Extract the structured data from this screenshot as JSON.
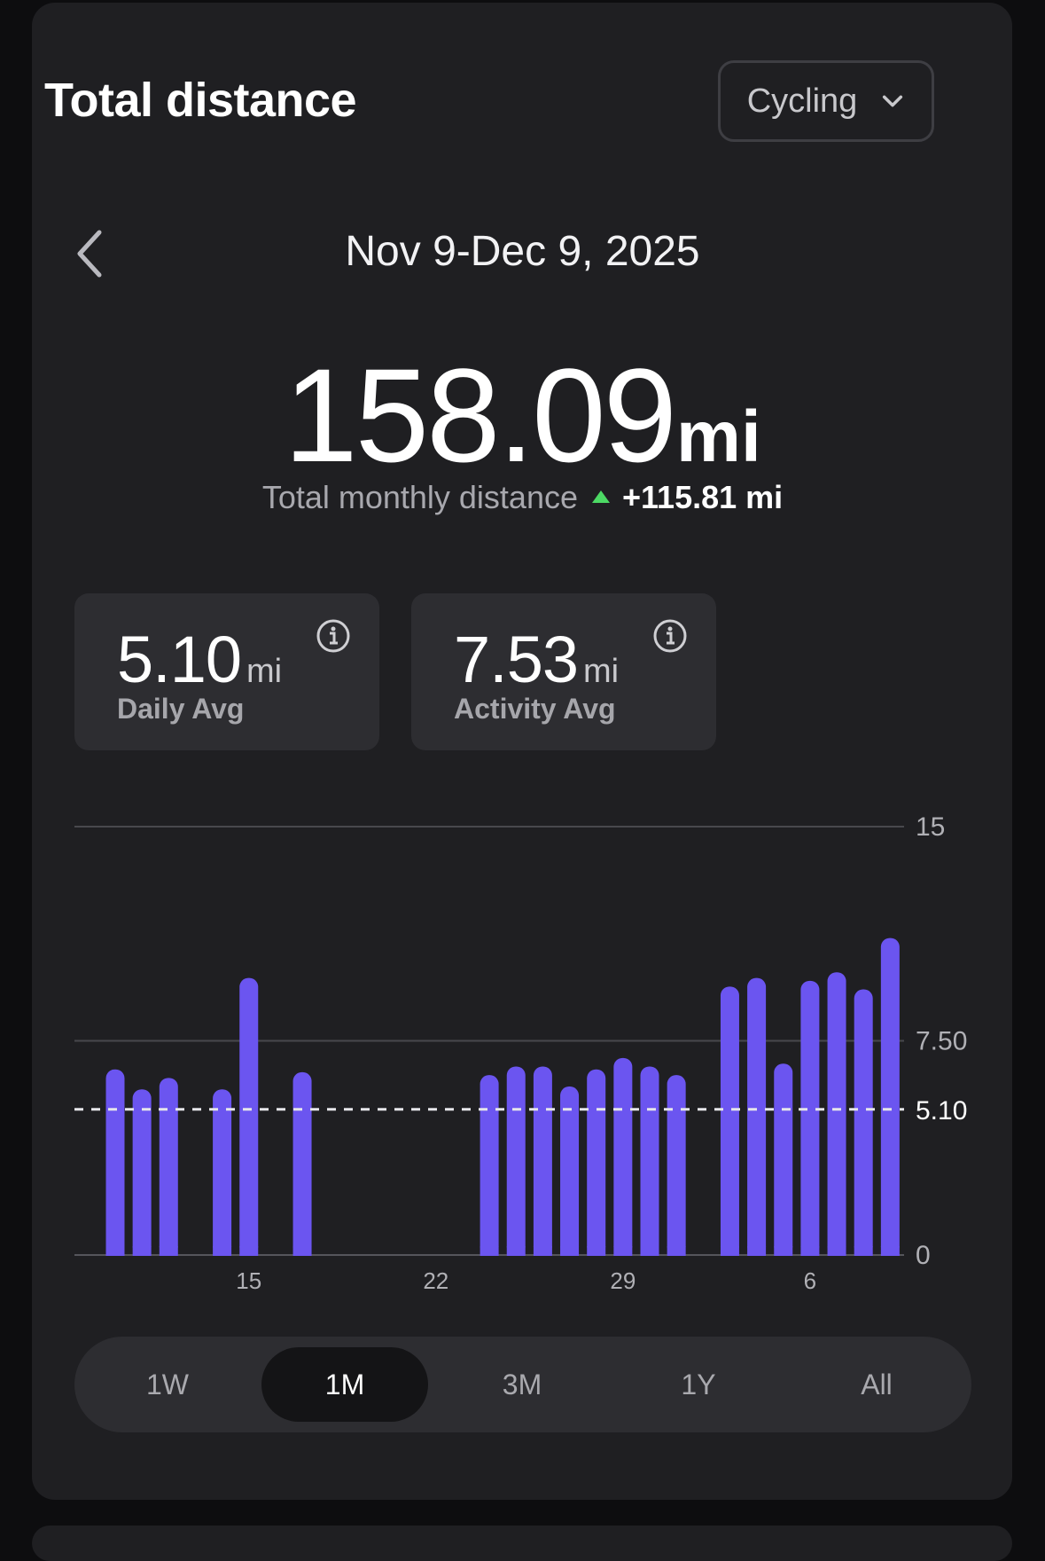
{
  "header": {
    "title": "Total distance",
    "activity_select": "Cycling"
  },
  "period": {
    "range": "Nov 9-Dec 9, 2025"
  },
  "total": {
    "value": "158.09",
    "unit": "mi",
    "label": "Total monthly distance",
    "delta": "+115.81",
    "delta_unit": "mi"
  },
  "stats": [
    {
      "value": "5.10",
      "unit": "mi",
      "label": "Daily Avg"
    },
    {
      "value": "7.53",
      "unit": "mi",
      "label": "Activity Avg"
    }
  ],
  "tabs": [
    {
      "label": "1W",
      "active": false
    },
    {
      "label": "1M",
      "active": true
    },
    {
      "label": "3M",
      "active": false
    },
    {
      "label": "1Y",
      "active": false
    },
    {
      "label": "All",
      "active": false
    }
  ],
  "colors": {
    "bar": "#6b55f0",
    "trend_up": "#4cd964",
    "average_line": "#e6e6ea"
  },
  "icons": {
    "back": "chevron-left-icon",
    "dropdown": "chevron-down-icon",
    "info": "info-icon"
  },
  "chart_data": {
    "type": "bar",
    "x": [
      "Nov 10",
      "Nov 11",
      "Nov 12",
      "Nov 13",
      "Nov 14",
      "Nov 15",
      "Nov 16",
      "Nov 17",
      "Nov 18",
      "Nov 19",
      "Nov 20",
      "Nov 21",
      "Nov 22",
      "Nov 23",
      "Nov 24",
      "Nov 25",
      "Nov 26",
      "Nov 27",
      "Nov 28",
      "Nov 29",
      "Nov 30",
      "Dec 1",
      "Dec 2",
      "Dec 3",
      "Dec 4",
      "Dec 5",
      "Dec 6",
      "Dec 7",
      "Dec 8",
      "Dec 9"
    ],
    "values": [
      6.5,
      5.8,
      6.2,
      0,
      5.8,
      9.7,
      0,
      6.4,
      0,
      0,
      0,
      0,
      0,
      0,
      6.3,
      6.6,
      6.6,
      5.9,
      6.5,
      6.9,
      6.6,
      6.3,
      0,
      9.4,
      9.7,
      6.7,
      9.6,
      9.9,
      9.3,
      11.1
    ],
    "xtick_labels": [
      {
        "label": "15",
        "at": "Nov 15"
      },
      {
        "label": "22",
        "at": "Nov 22"
      },
      {
        "label": "29",
        "at": "Nov 29"
      },
      {
        "label": "6",
        "at": "Dec 6"
      }
    ],
    "yticks": [
      {
        "value": 15,
        "label": "15"
      },
      {
        "value": 7.5,
        "label": "7.50"
      },
      {
        "value": 0,
        "label": "0"
      }
    ],
    "average": {
      "value": 5.1,
      "label": "5.10"
    },
    "ylim": [
      0,
      15
    ],
    "grid": true,
    "axis_position": "right"
  }
}
